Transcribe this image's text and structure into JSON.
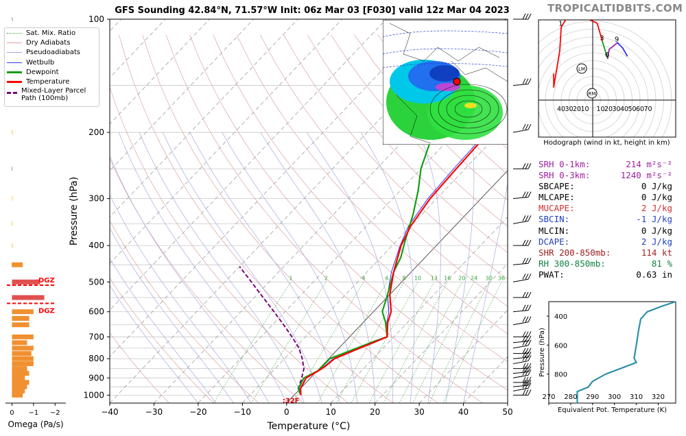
{
  "brand": "TROPICALTIDBITS.COM",
  "title": "GFS Sounding 42.84°N, 71.57°W Init: 06z Mar 03 [F030] valid 12z Mar 04 2023",
  "colors": {
    "temperature": "#ff0000",
    "dewpoint": "#109e10",
    "wetbulb": "#3333ee",
    "parcel": "#7a007a",
    "dgz": "#ff0000",
    "omega": "#f09030",
    "theta_e": "#2e8fa8"
  },
  "legend": [
    {
      "label": "Sat. Mix. Ratio",
      "style": "dotted-green"
    },
    {
      "label": "Dry Adiabats",
      "style": "thin-red"
    },
    {
      "label": "Pseudoadiabats",
      "style": "thin-blue"
    },
    {
      "label": "Wetbulb",
      "style": "blue"
    },
    {
      "label": "Dewpoint",
      "style": "green"
    },
    {
      "label": "Temperature",
      "style": "red"
    },
    {
      "label": "Mixed-Layer Parcel Path (100mb)",
      "style": "dashed-purple"
    }
  ],
  "stats": [
    {
      "label": "SRH 0-1km:",
      "value": "214",
      "unit": "m²s⁻²",
      "color": "#a020a0"
    },
    {
      "label": "SRH 0-3km:",
      "value": "1240",
      "unit": "m²s⁻²",
      "color": "#a020a0"
    },
    {
      "label": "SBCAPE:",
      "value": "0",
      "unit": "J/kg",
      "color": "#000000"
    },
    {
      "label": "MLCAPE:",
      "value": "0",
      "unit": "J/kg",
      "color": "#000000"
    },
    {
      "label": "MUCAPE:",
      "value": "2",
      "unit": "J/kg",
      "color": "#d03030"
    },
    {
      "label": "SBCIN:",
      "value": "-1",
      "unit": "J/kg",
      "color": "#2040c0"
    },
    {
      "label": "MLCIN:",
      "value": "0",
      "unit": "J/kg",
      "color": "#000000"
    },
    {
      "label": "DCAPE:",
      "value": "2",
      "unit": "J/kg",
      "color": "#2040c0"
    },
    {
      "label": "SHR 200-850mb:",
      "value": "114",
      "unit": "kt",
      "color": "#a02020"
    },
    {
      "label": "RH 300-850mb:",
      "value": "81",
      "unit": "%",
      "color": "#108040"
    },
    {
      "label": "PWAT:",
      "value": "0.63",
      "unit": "in",
      "color": "#000000"
    }
  ],
  "hodograph_caption": "Hodograph (wind in kt, height in km)",
  "chart_data": [
    {
      "type": "line",
      "name": "skew-t",
      "xlabel": "Temperature (°C)",
      "ylabel": "Pressure (hPa)",
      "xlim": [
        -40,
        50
      ],
      "ylim": [
        1050,
        100
      ],
      "yscale": "log",
      "x_ticks": [
        -40,
        -30,
        -20,
        -10,
        0,
        10,
        20,
        30,
        40,
        50
      ],
      "y_ticks": [
        100,
        200,
        300,
        400,
        500,
        600,
        700,
        800,
        900,
        1000
      ],
      "mixing_ratio_labels": [
        "1",
        "2",
        "4",
        "6",
        "8",
        "10",
        "13",
        "16",
        "20",
        "24",
        "30",
        "36"
      ],
      "freezing_label": "32F",
      "dgz_label": "DGZ",
      "dgz_pressures": [
        510,
        570
      ],
      "series": [
        {
          "name": "Temperature",
          "points": [
            [
              1.5,
              1000
            ],
            [
              0,
              960
            ],
            [
              -1,
              900
            ],
            [
              0,
              870
            ],
            [
              0.8,
              840
            ],
            [
              1.3,
              800
            ],
            [
              4,
              760
            ],
            [
              7,
              720
            ],
            [
              8.5,
              700
            ],
            [
              5.5,
              640
            ],
            [
              4,
              600
            ],
            [
              0,
              540
            ],
            [
              -4,
              470
            ],
            [
              -8,
              400
            ],
            [
              -10,
              355
            ],
            [
              -11.5,
              300
            ],
            [
              -12,
              250
            ],
            [
              -12.5,
              200
            ],
            [
              -15,
              150
            ],
            [
              -18,
              125
            ],
            [
              -22,
              100
            ]
          ]
        },
        {
          "name": "Dewpoint",
          "points": [
            [
              1.5,
              1000
            ],
            [
              -0.5,
              960
            ],
            [
              -1.5,
              900
            ],
            [
              0.2,
              860
            ],
            [
              0.2,
              800
            ],
            [
              6.5,
              720
            ],
            [
              8.5,
              700
            ],
            [
              5,
              640
            ],
            [
              2,
              600
            ],
            [
              -0.5,
              540
            ],
            [
              -4,
              470
            ],
            [
              -5.5,
              430
            ],
            [
              -8,
              390
            ],
            [
              -12,
              330
            ],
            [
              -16,
              285
            ],
            [
              -20,
              250
            ],
            [
              -25,
              200
            ],
            [
              -28,
              150
            ],
            [
              -30,
              130
            ],
            [
              -33,
              100
            ]
          ]
        },
        {
          "name": "Wetbulb",
          "points": [
            [
              1.5,
              1000
            ],
            [
              -0.3,
              960
            ],
            [
              -1.5,
              900
            ],
            [
              0,
              870
            ],
            [
              0.6,
              840
            ],
            [
              1,
              800
            ],
            [
              4,
              760
            ],
            [
              7,
              720
            ],
            [
              8.5,
              700
            ],
            [
              5.3,
              640
            ],
            [
              3.5,
              600
            ],
            [
              -0.5,
              540
            ],
            [
              -4.5,
              470
            ],
            [
              -8.2,
              400
            ],
            [
              -10.5,
              355
            ],
            [
              -12,
              300
            ],
            [
              -12.6,
              250
            ],
            [
              -13,
              200
            ],
            [
              -16,
              150
            ],
            [
              -19,
              125
            ],
            [
              -22.5,
              100
            ]
          ]
        },
        {
          "name": "Mixed-Layer Parcel Path (100mb)",
          "points": [
            [
              1.5,
              1000
            ],
            [
              -0.5,
              960
            ],
            [
              -2,
              900
            ],
            [
              -3.5,
              850
            ],
            [
              -6,
              800
            ],
            [
              -9,
              750
            ],
            [
              -13,
              700
            ],
            [
              -17.5,
              650
            ],
            [
              -22.5,
              600
            ],
            [
              -28,
              550
            ],
            [
              -34,
              500
            ],
            [
              -40,
              455
            ]
          ]
        }
      ]
    },
    {
      "type": "bar",
      "name": "omega",
      "xlabel": "Omega (Pa/s)",
      "x_ticks": [
        "0",
        "−1",
        "−2"
      ],
      "xlim": [
        0.3,
        -2.5
      ],
      "values": [
        [
          -0.5,
          1000
        ],
        [
          -0.6,
          975
        ],
        [
          -0.7,
          950
        ],
        [
          -0.8,
          925
        ],
        [
          -0.6,
          900
        ],
        [
          -0.8,
          875
        ],
        [
          -0.7,
          850
        ],
        [
          -1.0,
          825
        ],
        [
          -1.0,
          800
        ],
        [
          -0.9,
          775
        ],
        [
          -1.0,
          750
        ],
        [
          -0.7,
          725
        ],
        [
          -1.0,
          700
        ],
        [
          -0.8,
          650
        ],
        [
          -0.8,
          625
        ],
        [
          -1.0,
          600
        ],
        [
          -1.5,
          550
        ],
        [
          -1.3,
          500
        ],
        [
          -0.5,
          450
        ]
      ]
    },
    {
      "type": "line",
      "name": "theta-e",
      "xlabel": "Equivalent Pot. Temperature (K)",
      "ylabel": "Pressure (hPa)",
      "x_ticks": [
        270,
        280,
        290,
        300,
        310,
        320
      ],
      "y_ticks": [
        400,
        600,
        800
      ],
      "xlim": [
        270,
        328
      ],
      "ylim": [
        1000,
        300
      ],
      "points": [
        [
          283,
          1000
        ],
        [
          283,
          920
        ],
        [
          288,
          890
        ],
        [
          290,
          850
        ],
        [
          296,
          800
        ],
        [
          303,
          760
        ],
        [
          310,
          720
        ],
        [
          309,
          690
        ],
        [
          310,
          600
        ],
        [
          311,
          500
        ],
        [
          312,
          420
        ],
        [
          315,
          370
        ],
        [
          322,
          330
        ],
        [
          328,
          300
        ]
      ]
    },
    {
      "type": "line",
      "name": "hodograph",
      "ring_labels": [
        "10",
        "20",
        "30",
        "40",
        "50",
        "60",
        "70"
      ],
      "points": [
        [
          -30,
          40
        ],
        [
          -30,
          20
        ],
        [
          -22,
          75
        ],
        [
          -20,
          112
        ],
        [
          -8,
          135
        ],
        [
          15,
          125
        ],
        [
          28,
          118
        ],
        [
          35,
          90
        ],
        [
          37,
          82
        ],
        [
          42,
          64
        ],
        [
          44,
          78
        ],
        [
          55,
          88
        ],
        [
          62,
          80
        ],
        [
          68,
          68
        ]
      ],
      "height_labels": [
        "1",
        "2",
        "3",
        "6",
        "9"
      ],
      "storm_markers": [
        "LM",
        "RM"
      ]
    }
  ]
}
